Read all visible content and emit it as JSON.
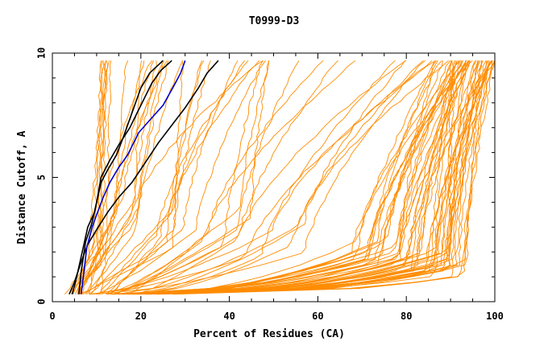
{
  "chart_data": {
    "type": "line",
    "title": "T0999-D3",
    "xlabel": "Percent of Residues (CA)",
    "ylabel": "Distance Cutoff, A",
    "xlim": [
      0,
      100
    ],
    "ylim": [
      0,
      10
    ],
    "x_ticks": [
      "0",
      "20",
      "40",
      "60",
      "80",
      "100"
    ],
    "y_ticks": [
      "0",
      "5",
      "10"
    ],
    "grid": false,
    "legend": "none",
    "colors": {
      "orange": "#ff8c00",
      "black": "#000000",
      "blue": "#0000cd"
    },
    "highlight_series": [
      {
        "color": "black",
        "points": [
          [
            4.5,
            0.3
          ],
          [
            5.5,
            1.0
          ],
          [
            7,
            2.2
          ],
          [
            8,
            3.0
          ],
          [
            9.5,
            3.6
          ],
          [
            11,
            4.8
          ],
          [
            12.5,
            5.3
          ],
          [
            14.5,
            5.9
          ],
          [
            16,
            6.6
          ],
          [
            18,
            7.6
          ],
          [
            20,
            8.6
          ],
          [
            22,
            9.2
          ],
          [
            25,
            9.7
          ]
        ]
      },
      {
        "color": "black",
        "points": [
          [
            6,
            0.3
          ],
          [
            6.5,
            1.2
          ],
          [
            7.5,
            2.4
          ],
          [
            9,
            3.2
          ],
          [
            10,
            4.0
          ],
          [
            11,
            5.0
          ],
          [
            13,
            5.7
          ],
          [
            15,
            6.3
          ],
          [
            17.5,
            7.0
          ],
          [
            20,
            7.9
          ],
          [
            22.5,
            8.8
          ],
          [
            24.5,
            9.3
          ],
          [
            27,
            9.7
          ]
        ]
      },
      {
        "color": "black",
        "points": [
          [
            3.8,
            0.3
          ],
          [
            5,
            0.8
          ],
          [
            6.5,
            1.6
          ],
          [
            8,
            2.3
          ],
          [
            10,
            2.9
          ],
          [
            12.5,
            3.6
          ],
          [
            15,
            4.2
          ],
          [
            18,
            4.8
          ],
          [
            21,
            5.6
          ],
          [
            24,
            6.4
          ],
          [
            27,
            7.1
          ],
          [
            30,
            7.8
          ],
          [
            33,
            8.6
          ],
          [
            35,
            9.2
          ],
          [
            37.5,
            9.7
          ]
        ]
      },
      {
        "color": "blue",
        "points": [
          [
            6.5,
            0.3
          ],
          [
            7,
            1.0
          ],
          [
            7.8,
            2.2
          ],
          [
            9,
            3.0
          ],
          [
            10,
            3.5
          ],
          [
            11.5,
            4.2
          ],
          [
            13,
            4.8
          ],
          [
            15,
            5.4
          ],
          [
            17,
            5.9
          ],
          [
            19.5,
            6.8
          ],
          [
            22,
            7.3
          ],
          [
            25,
            7.9
          ],
          [
            27.5,
            8.7
          ],
          [
            29,
            9.2
          ],
          [
            30,
            9.7
          ]
        ]
      }
    ],
    "orange_families": [
      {
        "count": 8,
        "x_start": [
          3,
          9
        ],
        "x_mid": [
          8,
          14
        ],
        "x_end": [
          9,
          13
        ],
        "y_mid": 2.0,
        "shape": 0.8
      },
      {
        "count": 10,
        "x_start": [
          4,
          11
        ],
        "x_mid": [
          12,
          22
        ],
        "x_end": [
          16,
          30
        ],
        "y_mid": 3.5,
        "shape": 0.9
      },
      {
        "count": 10,
        "x_start": [
          5,
          14
        ],
        "x_mid": [
          18,
          30
        ],
        "x_end": [
          28,
          50
        ],
        "y_mid": 3.0,
        "shape": 1.0
      },
      {
        "count": 8,
        "x_start": [
          8,
          20
        ],
        "x_mid": [
          30,
          45
        ],
        "x_end": [
          45,
          70
        ],
        "y_mid": 3.0,
        "shape": 1.2
      },
      {
        "count": 8,
        "x_start": [
          8,
          20
        ],
        "x_mid": [
          40,
          60
        ],
        "x_end": [
          70,
          90
        ],
        "y_mid": 2.5,
        "shape": 1.5
      },
      {
        "count": 18,
        "x_start": [
          10,
          22
        ],
        "x_mid": [
          65,
          80
        ],
        "x_end": [
          84,
          95
        ],
        "y_mid": 2.0,
        "shape": 2.0
      },
      {
        "count": 24,
        "x_start": [
          12,
          25
        ],
        "x_mid": [
          78,
          90
        ],
        "x_end": [
          90,
          100
        ],
        "y_mid": 1.6,
        "shape": 2.4
      },
      {
        "count": 12,
        "x_start": [
          15,
          28
        ],
        "x_mid": [
          86,
          94
        ],
        "x_end": [
          96,
          100
        ],
        "y_mid": 1.4,
        "shape": 2.6
      }
    ]
  }
}
